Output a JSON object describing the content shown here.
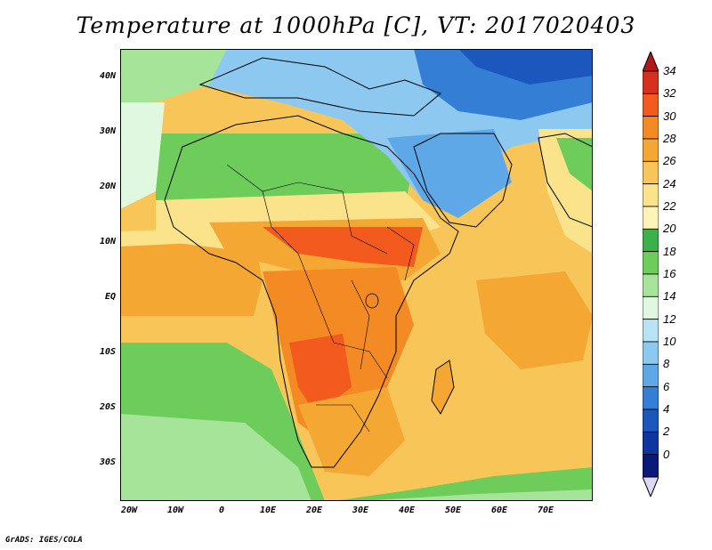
{
  "title": "Temperature at 1000hPa [C], VT: 2017020403",
  "credit": "GrADS: IGES/COLA",
  "y_ticks": [
    "40N",
    "30N",
    "20N",
    "10N",
    "EQ",
    "10S",
    "20S",
    "30S"
  ],
  "x_ticks": [
    "20W",
    "10W",
    "0",
    "10E",
    "20E",
    "30E",
    "40E",
    "50E",
    "60E",
    "70E"
  ],
  "colorbar": {
    "labels": [
      "34",
      "32",
      "30",
      "28",
      "26",
      "24",
      "22",
      "20",
      "18",
      "16",
      "14",
      "12",
      "10",
      "8",
      "6",
      "4",
      "2",
      "0"
    ],
    "colors": [
      "#d7301f",
      "#f25a1e",
      "#f38a23",
      "#f5a733",
      "#f8c658",
      "#fae38a",
      "#fff4b8",
      "#3cb04a",
      "#6dcc5a",
      "#a6e49a",
      "#dff8df",
      "#b7e3f5",
      "#8cc8ef",
      "#5ea8e8",
      "#357ed6",
      "#1c57bd",
      "#0f35a0",
      "#0a1a78"
    ],
    "top_arrow_color": "#b2181b",
    "bottom_arrow_color": "#dcd8f5"
  },
  "map": {
    "region": "Africa, Arabia and western India",
    "lon_range": [
      -22,
      80
    ],
    "lat_range": [
      -36,
      45
    ],
    "ocean_base_color": "#6dcc5a",
    "cold_north_color": "#4d96e0",
    "hot_interior_color": "#f38a23",
    "very_hot_color": "#e85c1e"
  }
}
